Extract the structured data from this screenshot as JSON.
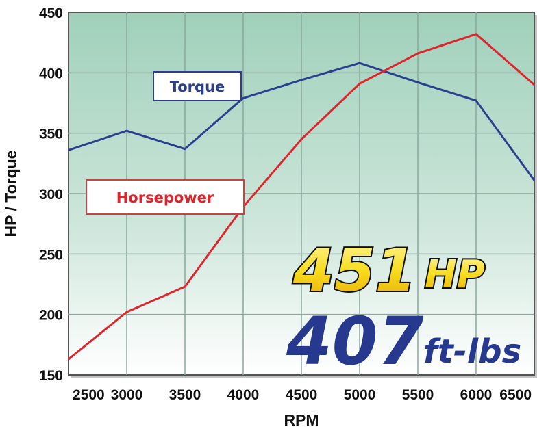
{
  "chart_data": {
    "type": "line",
    "title": "",
    "xlabel": "RPM",
    "ylabel": "HP / Torque",
    "x": [
      2500,
      3000,
      3500,
      4000,
      4500,
      5000,
      5500,
      6000,
      6500
    ],
    "x_ticks": [
      "2500",
      "3000",
      "3500",
      "4000",
      "4500",
      "5000",
      "5500",
      "6000",
      "6500"
    ],
    "y_ticks": [
      "150",
      "200",
      "250",
      "300",
      "350",
      "400",
      "450"
    ],
    "xlim": [
      2500,
      6500
    ],
    "ylim": [
      150,
      450
    ],
    "grid": true,
    "series": [
      {
        "name": "Torque",
        "color": "#2a3f8f",
        "values": [
          336,
          352,
          337,
          379,
          394,
          408,
          392,
          377,
          311
        ]
      },
      {
        "name": "Horsepower",
        "color": "#e0242b",
        "values": [
          163,
          202,
          223,
          289,
          345,
          391,
          416,
          432,
          390
        ]
      }
    ],
    "annotations": {
      "hp_value": "451",
      "hp_unit": "HP",
      "torque_value": "407",
      "torque_unit": "ft-lbs"
    },
    "colors": {
      "plot_bg_top": "#a7d4c0",
      "plot_bg_bottom": "#ffffff",
      "hp_text": "#f5d313",
      "torque_text": "#27398f"
    }
  }
}
